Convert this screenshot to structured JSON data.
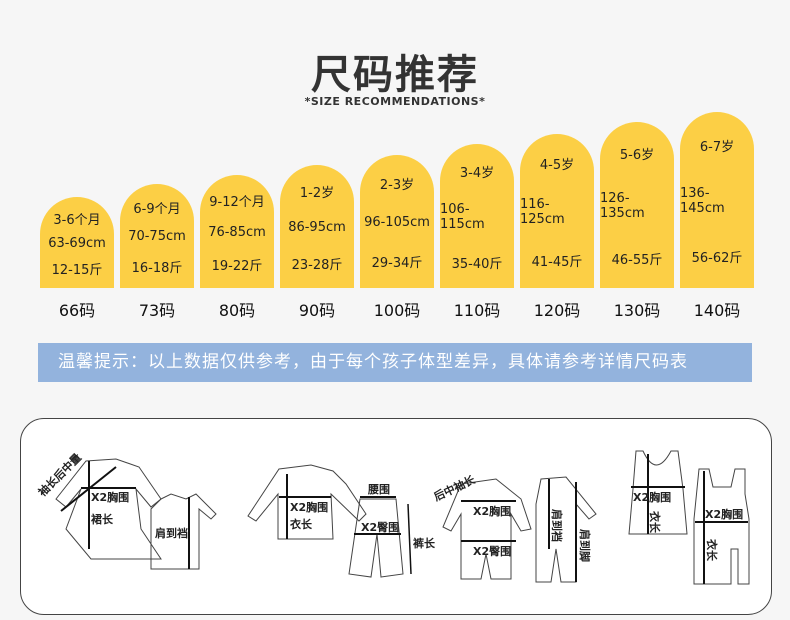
{
  "header": {
    "title": "尺码推荐",
    "subtitle": "*SIZE RECOMMENDATIONS*"
  },
  "colors": {
    "accent": "#fccf45",
    "notice_bg": "#93b3dd"
  },
  "sizes": [
    {
      "age": "3-6个月",
      "height": "63-69cm",
      "weight": "12-15斤",
      "code": "66码"
    },
    {
      "age": "6-9个月",
      "height": "70-75cm",
      "weight": "16-18斤",
      "code": "73码"
    },
    {
      "age": "9-12个月",
      "height": "76-85cm",
      "weight": "19-22斤",
      "code": "80码"
    },
    {
      "age": "1-2岁",
      "height": "86-95cm",
      "weight": "23-28斤",
      "code": "90码"
    },
    {
      "age": "2-3岁",
      "height": "96-105cm",
      "weight": "29-34斤",
      "code": "100码"
    },
    {
      "age": "3-4岁",
      "height": "106-115cm",
      "weight": "35-40斤",
      "code": "110码"
    },
    {
      "age": "4-5岁",
      "height": "116-125cm",
      "weight": "41-45斤",
      "code": "120码"
    },
    {
      "age": "5-6岁",
      "height": "126-135cm",
      "weight": "46-55斤",
      "code": "130码"
    },
    {
      "age": "6-7岁",
      "height": "136-145cm",
      "weight": "56-62斤",
      "code": "140码"
    }
  ],
  "notice": "温馨提示：以上数据仅供参考，由于每个孩子体型差异，具体请参考详情尺码表",
  "diagram_labels": {
    "sleeve": "袖长后中量",
    "chest": "X2胸围",
    "skirt_len": "裙长",
    "shoulder_crotch": "肩到裆",
    "body_len": "衣长",
    "waist": "腰围",
    "hip": "X2臀围",
    "pants_len": "裤长",
    "back_sleeve": "后中袖长",
    "shoulder_foot": "肩到脚"
  }
}
